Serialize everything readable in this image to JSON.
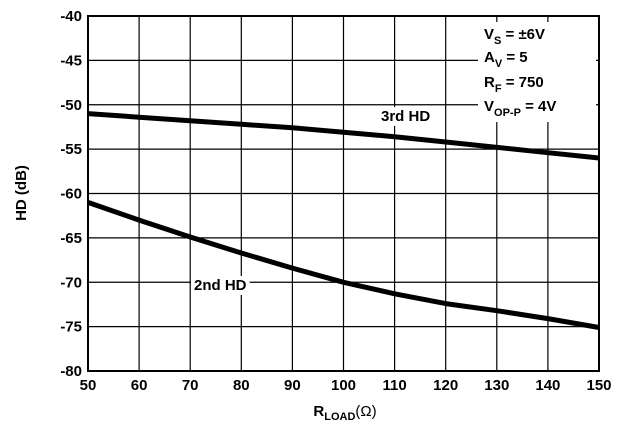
{
  "chart_data": {
    "type": "line",
    "xlabel": "R",
    "xlabel_sub": "LOAD",
    "xlabel_unit": "(Ω)",
    "ylabel": "HD (dB)",
    "xlim": [
      50,
      150
    ],
    "ylim": [
      -80,
      -40
    ],
    "x_ticks": [
      "50",
      "60",
      "70",
      "80",
      "90",
      "100",
      "110",
      "120",
      "130",
      "140",
      "150"
    ],
    "y_ticks": [
      "-40",
      "-45",
      "-50",
      "-55",
      "-60",
      "-65",
      "-70",
      "-75",
      "-80"
    ],
    "grid": true,
    "series": [
      {
        "name": "3rd HD",
        "x": [
          50,
          60,
          70,
          80,
          90,
          100,
          110,
          120,
          130,
          140,
          150
        ],
        "y": [
          -51.0,
          -51.4,
          -51.8,
          -52.2,
          -52.6,
          -53.1,
          -53.6,
          -54.2,
          -54.8,
          -55.4,
          -56.0
        ]
      },
      {
        "name": "2nd HD",
        "x": [
          50,
          60,
          70,
          80,
          90,
          100,
          110,
          120,
          130,
          140,
          150
        ],
        "y": [
          -61.0,
          -63.0,
          -64.9,
          -66.7,
          -68.4,
          -70.0,
          -71.3,
          -72.4,
          -73.2,
          -74.1,
          -75.1
        ]
      }
    ],
    "conditions": {
      "line1": {
        "main": "V",
        "sub": "S",
        "rest": " = ±6V"
      },
      "line2": {
        "main": "A",
        "sub": "V",
        "rest": " = 5"
      },
      "line3": {
        "main": "R",
        "sub": "F",
        "rest": " = 750"
      },
      "line4": {
        "main": "V",
        "sub": "OP-P",
        "rest": " = 4V"
      }
    }
  }
}
